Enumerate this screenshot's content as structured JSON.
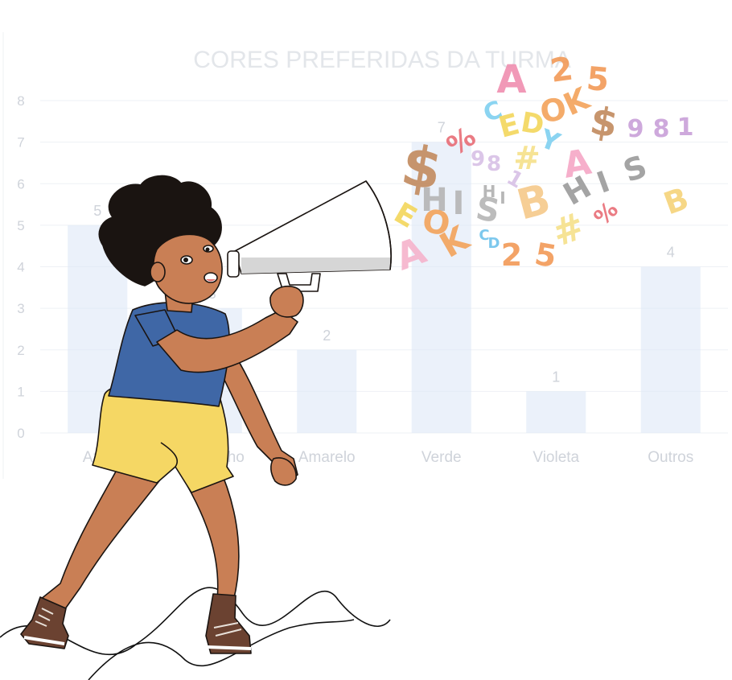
{
  "chart_data": {
    "type": "bar",
    "title": "CORES PREFERIDAS DA TURMA",
    "categories": [
      "Azul",
      "Vermelho",
      "Amarelo",
      "Verde",
      "Violeta",
      "Outros"
    ],
    "values": [
      5,
      3,
      2,
      7,
      1,
      4
    ],
    "ylim": [
      0,
      8
    ],
    "yticks": [
      "0",
      "1",
      "2",
      "3",
      "4",
      "5",
      "6",
      "7",
      "8"
    ],
    "grid": true,
    "bar_color": "#dde8f6",
    "text_color": "#cfd3da"
  },
  "illustration": {
    "skin_color": "#c97f55",
    "hair_color": "#1a1411",
    "shirt_color": "#3f67a6",
    "shorts_color": "#f5d764",
    "shoe_color": "#6b4231",
    "megaphone_color": "#ffffff"
  },
  "floating_glyphs": [
    {
      "text": "A",
      "color": "#f08fb0"
    },
    {
      "text": "2",
      "color": "#f29a57"
    },
    {
      "text": "5",
      "color": "#f29a57"
    },
    {
      "text": "C",
      "color": "#7fd0f0"
    },
    {
      "text": "E",
      "color": "#f3d65c"
    },
    {
      "text": "D",
      "color": "#f3d65c"
    },
    {
      "text": "O",
      "color": "#f3a35a"
    },
    {
      "text": "K",
      "color": "#f3a35a"
    },
    {
      "text": "Y",
      "color": "#7fd0f0"
    },
    {
      "text": "$",
      "color": "#c28a5e"
    },
    {
      "text": "9",
      "color": "#c9a0d9"
    },
    {
      "text": "8",
      "color": "#c9a0d9"
    },
    {
      "text": "1",
      "color": "#c9a0d9"
    },
    {
      "text": "%",
      "color": "#e86d76"
    },
    {
      "text": "$",
      "color": "#c28a5e"
    },
    {
      "text": "9",
      "color": "#d8c0e6"
    },
    {
      "text": "8",
      "color": "#d8c0e6"
    },
    {
      "text": "1",
      "color": "#d8c0e6"
    },
    {
      "text": "#",
      "color": "#f6e08a"
    },
    {
      "text": "A",
      "color": "#f6a7c6"
    },
    {
      "text": "H",
      "color": "#b5b5b5"
    },
    {
      "text": "I",
      "color": "#b5b5b5"
    },
    {
      "text": "S",
      "color": "#b5b5b5"
    },
    {
      "text": "B",
      "color": "#f6c98a"
    },
    {
      "text": "H",
      "color": "#9b9b9b"
    },
    {
      "text": "I",
      "color": "#9b9b9b"
    },
    {
      "text": "S",
      "color": "#9b9b9b"
    },
    {
      "text": "%",
      "color": "#e86d76"
    },
    {
      "text": "B",
      "color": "#f6d37a"
    },
    {
      "text": "#",
      "color": "#f6e08a"
    },
    {
      "text": "E",
      "color": "#f3d65c"
    },
    {
      "text": "O",
      "color": "#f3a35a"
    },
    {
      "text": "K",
      "color": "#f3a35a"
    },
    {
      "text": "A",
      "color": "#f6b3cc"
    },
    {
      "text": "C",
      "color": "#6fc3ec"
    },
    {
      "text": "D",
      "color": "#6fc3ec"
    },
    {
      "text": "2",
      "color": "#f29a57"
    },
    {
      "text": "5",
      "color": "#f29a57"
    },
    {
      "text": "H",
      "color": "#b0b0b0"
    },
    {
      "text": "I",
      "color": "#b0b0b0"
    }
  ]
}
